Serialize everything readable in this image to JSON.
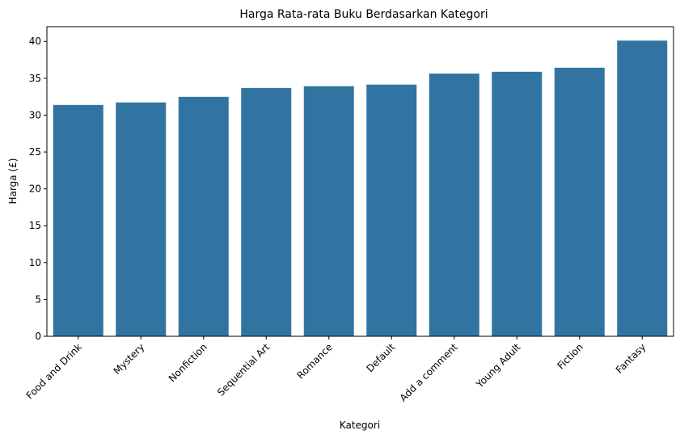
{
  "chart_data": {
    "type": "bar",
    "title": "Harga Rata-rata Buku Berdasarkan Kategori",
    "xlabel": "Kategori",
    "ylabel": "Harga (£)",
    "categories": [
      "Food and Drink",
      "Mystery",
      "Nonfiction",
      "Sequential Art",
      "Romance",
      "Default",
      "Add a comment",
      "Young Adult",
      "Fiction",
      "Fantasy"
    ],
    "values": [
      31.38,
      31.72,
      32.48,
      33.68,
      33.93,
      34.14,
      35.64,
      35.88,
      36.43,
      40.11
    ],
    "ylim": [
      0,
      42
    ],
    "yticks": [
      0,
      5,
      10,
      15,
      20,
      25,
      30,
      35,
      40
    ],
    "bar_color": "#3274a1",
    "grid": false,
    "legend": false
  }
}
